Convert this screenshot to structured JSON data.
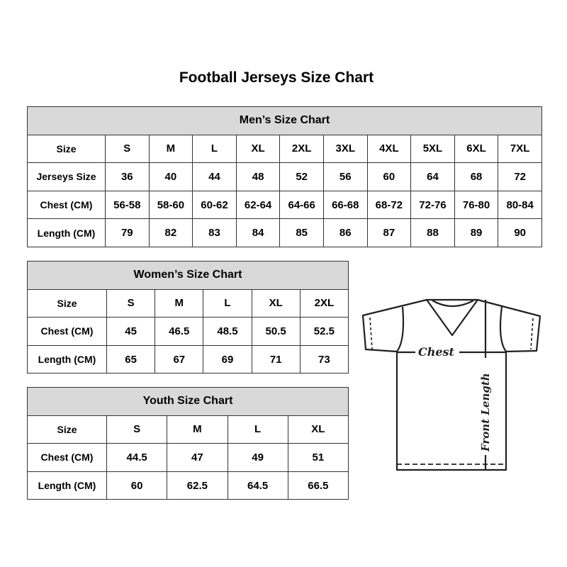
{
  "title": "Football Jerseys Size Chart",
  "men": {
    "heading": "Men’s Size Chart",
    "rows": [
      {
        "label": "Size",
        "cells": [
          "S",
          "M",
          "L",
          "XL",
          "2XL",
          "3XL",
          "4XL",
          "5XL",
          "6XL",
          "7XL"
        ]
      },
      {
        "label": "Jerseys Size",
        "cells": [
          "36",
          "40",
          "44",
          "48",
          "52",
          "56",
          "60",
          "64",
          "68",
          "72"
        ]
      },
      {
        "label": "Chest (CM)",
        "cells": [
          "56-58",
          "58-60",
          "60-62",
          "62-64",
          "64-66",
          "66-68",
          "68-72",
          "72-76",
          "76-80",
          "80-84"
        ]
      },
      {
        "label": "Length (CM)",
        "cells": [
          "79",
          "82",
          "83",
          "84",
          "85",
          "86",
          "87",
          "88",
          "89",
          "90"
        ]
      }
    ]
  },
  "women": {
    "heading": "Women’s Size Chart",
    "rows": [
      {
        "label": "Size",
        "cells": [
          "S",
          "M",
          "L",
          "XL",
          "2XL"
        ]
      },
      {
        "label": "Chest (CM)",
        "cells": [
          "45",
          "46.5",
          "48.5",
          "50.5",
          "52.5"
        ]
      },
      {
        "label": "Length (CM)",
        "cells": [
          "65",
          "67",
          "69",
          "71",
          "73"
        ]
      }
    ]
  },
  "youth": {
    "heading": "Youth Size Chart",
    "rows": [
      {
        "label": "Size",
        "cells": [
          "S",
          "M",
          "L",
          "XL"
        ]
      },
      {
        "label": "Chest (CM)",
        "cells": [
          "44.5",
          "47",
          "49",
          "51"
        ]
      },
      {
        "label": "Length (CM)",
        "cells": [
          "60",
          "62.5",
          "64.5",
          "66.5"
        ]
      }
    ]
  },
  "diagram": {
    "chest_label": "Chest",
    "length_label": "Front Length"
  },
  "colors": {
    "header_bg": "#d9d9d9",
    "border": "#333333"
  }
}
